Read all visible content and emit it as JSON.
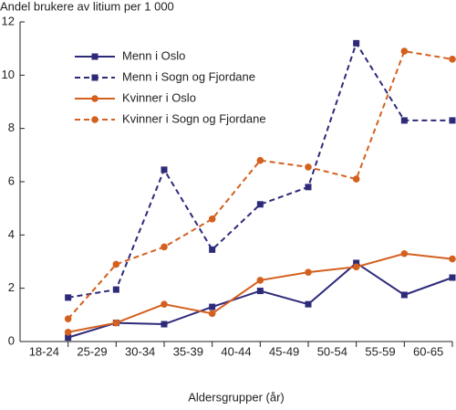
{
  "chart_data": {
    "type": "line",
    "y_label": "Andel brukere av litium per 1 000",
    "x_label": "Aldersgrupper (år)",
    "categories": [
      "18-24",
      "25-29",
      "30-34",
      "35-39",
      "40-44",
      "45-49",
      "50-54",
      "55-59",
      "60-65"
    ],
    "ylim": [
      0,
      12
    ],
    "yticks": [
      0,
      2,
      4,
      6,
      8,
      10,
      12
    ],
    "grid": false,
    "legend": "upper left",
    "series": [
      {
        "name": "Menn i Oslo",
        "color": "#2e2a7a",
        "dashed": false,
        "marker": "square",
        "values": [
          0.15,
          0.7,
          0.65,
          1.3,
          1.9,
          1.4,
          2.95,
          1.75,
          2.4
        ]
      },
      {
        "name": "Menn i Sogn og Fjordane",
        "color": "#2e2a7a",
        "dashed": true,
        "marker": "square",
        "values": [
          1.65,
          1.95,
          6.45,
          3.45,
          5.15,
          5.8,
          11.2,
          8.3,
          8.3
        ]
      },
      {
        "name": "Kvinner i Oslo",
        "color": "#d4601f",
        "dashed": false,
        "marker": "circle",
        "values": [
          0.35,
          0.7,
          1.4,
          1.05,
          2.3,
          2.6,
          2.8,
          3.3,
          3.1
        ]
      },
      {
        "name": "Kvinner i Sogn og Fjordane",
        "color": "#d4601f",
        "dashed": true,
        "marker": "circle",
        "values": [
          0.85,
          2.9,
          3.55,
          4.6,
          6.8,
          6.55,
          6.1,
          10.9,
          10.6
        ]
      }
    ]
  }
}
